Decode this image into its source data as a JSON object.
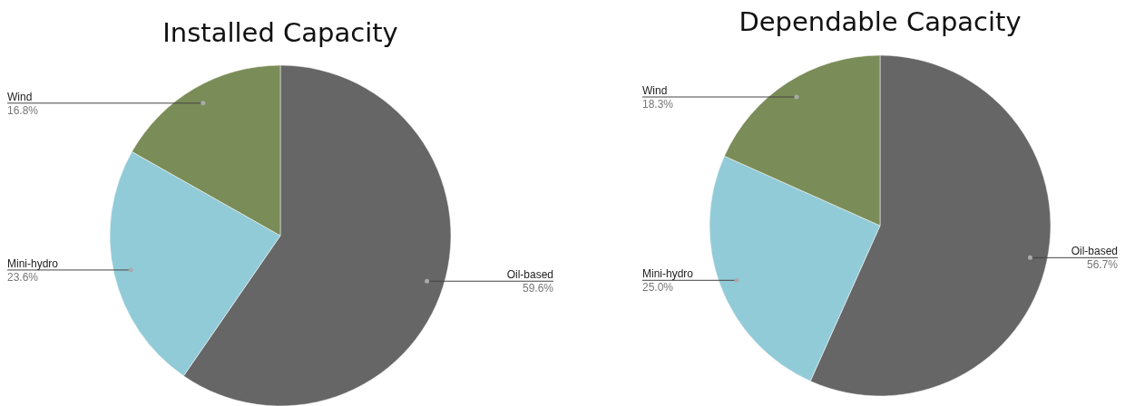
{
  "chart_data": [
    {
      "type": "pie",
      "title": "Installed Capacity",
      "categories": [
        "Oil-based",
        "Mini-hydro",
        "Wind"
      ],
      "values": [
        59.6,
        23.6,
        16.8
      ],
      "colors": [
        "#666666",
        "#92cbd8",
        "#7a8c57"
      ],
      "value_labels": [
        "59.6%",
        "23.6%",
        "16.8%"
      ]
    },
    {
      "type": "pie",
      "title": "Dependable Capacity",
      "categories": [
        "Oil-based",
        "Mini-hydro",
        "Wind"
      ],
      "values": [
        56.7,
        25.0,
        18.3
      ],
      "colors": [
        "#666666",
        "#92cbd8",
        "#7a8c57"
      ],
      "value_labels": [
        "56.7%",
        "25.0%",
        "18.3%"
      ]
    }
  ]
}
